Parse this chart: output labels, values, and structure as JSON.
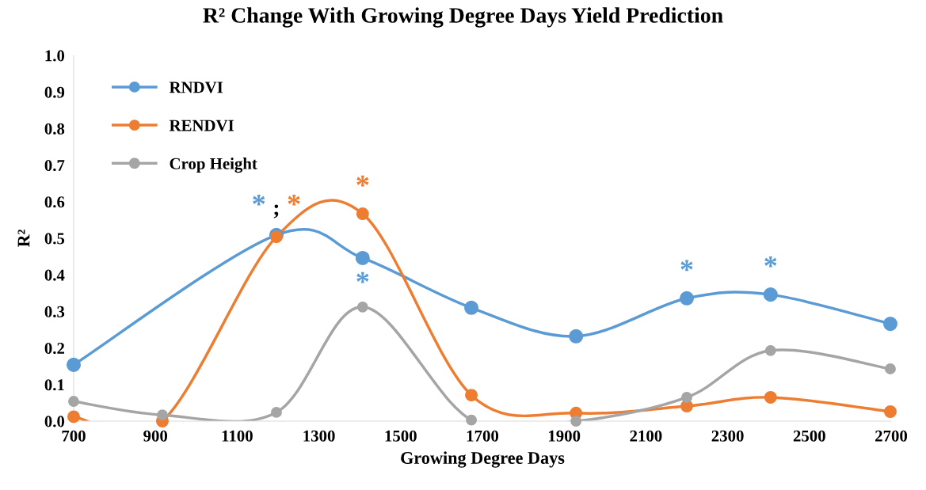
{
  "chart_data": {
    "type": "line",
    "title": "R² Change With Growing Degree Days Yield Prediction",
    "xlabel": "Growing Degree Days",
    "ylabel": "R²",
    "x": [
      700,
      917,
      1196,
      1407,
      1673,
      1929,
      2200,
      2405,
      2698
    ],
    "series": [
      {
        "name": "RNDVI",
        "color": "#5b9bd5",
        "values": [
          0.154,
          null,
          0.509,
          0.446,
          0.31,
          0.232,
          0.336,
          0.346,
          0.266
        ]
      },
      {
        "name": "RENDVI",
        "color": "#ed7d31",
        "values": [
          0.012,
          0.0,
          0.504,
          0.567,
          0.071,
          0.022,
          0.041,
          0.065,
          0.026
        ]
      },
      {
        "name": "Crop Height",
        "color": "#a5a5a5",
        "values": [
          0.054,
          0.017,
          0.024,
          0.312,
          0.003,
          0.0,
          0.065,
          0.193,
          0.143
        ]
      }
    ],
    "xlim": [
      700,
      2700
    ],
    "xticks": [
      700,
      900,
      1100,
      1300,
      1500,
      1700,
      1900,
      2100,
      2300,
      2500,
      2700
    ],
    "ylim": [
      0,
      1
    ],
    "yticks": [
      {
        "value": 0,
        "label": "0.0"
      },
      {
        "value": 0.1,
        "label": "0.1"
      },
      {
        "value": 0.2,
        "label": "0.2"
      },
      {
        "value": 0.3,
        "label": "0.3"
      },
      {
        "value": 0.4,
        "label": "0.4"
      },
      {
        "value": 0.5,
        "label": "0.5"
      },
      {
        "value": 0.6,
        "label": "0.6"
      },
      {
        "value": 0.7,
        "label": "0.7"
      },
      {
        "value": 0.8,
        "label": "0.8"
      },
      {
        "value": 0.9,
        "label": "0.9"
      },
      {
        "value": 1,
        "label": "1.0"
      }
    ],
    "marker": "circle",
    "line_style": "solid",
    "grid": false,
    "legend": "top left",
    "annotations": [
      {
        "text": "*",
        "x": 1196,
        "y": 0.509
      },
      {
        "text": ";",
        "x": 1196,
        "y": 0.509
      },
      {
        "text": "*",
        "x": 1196,
        "y": 0.504
      },
      {
        "text": "*",
        "x": 1407,
        "y": 0.567
      },
      {
        "text": "*",
        "x": 1407,
        "y": 0.446
      },
      {
        "text": "*",
        "x": 2200,
        "y": 0.336
      },
      {
        "text": "*",
        "x": 2405,
        "y": 0.346
      }
    ]
  }
}
